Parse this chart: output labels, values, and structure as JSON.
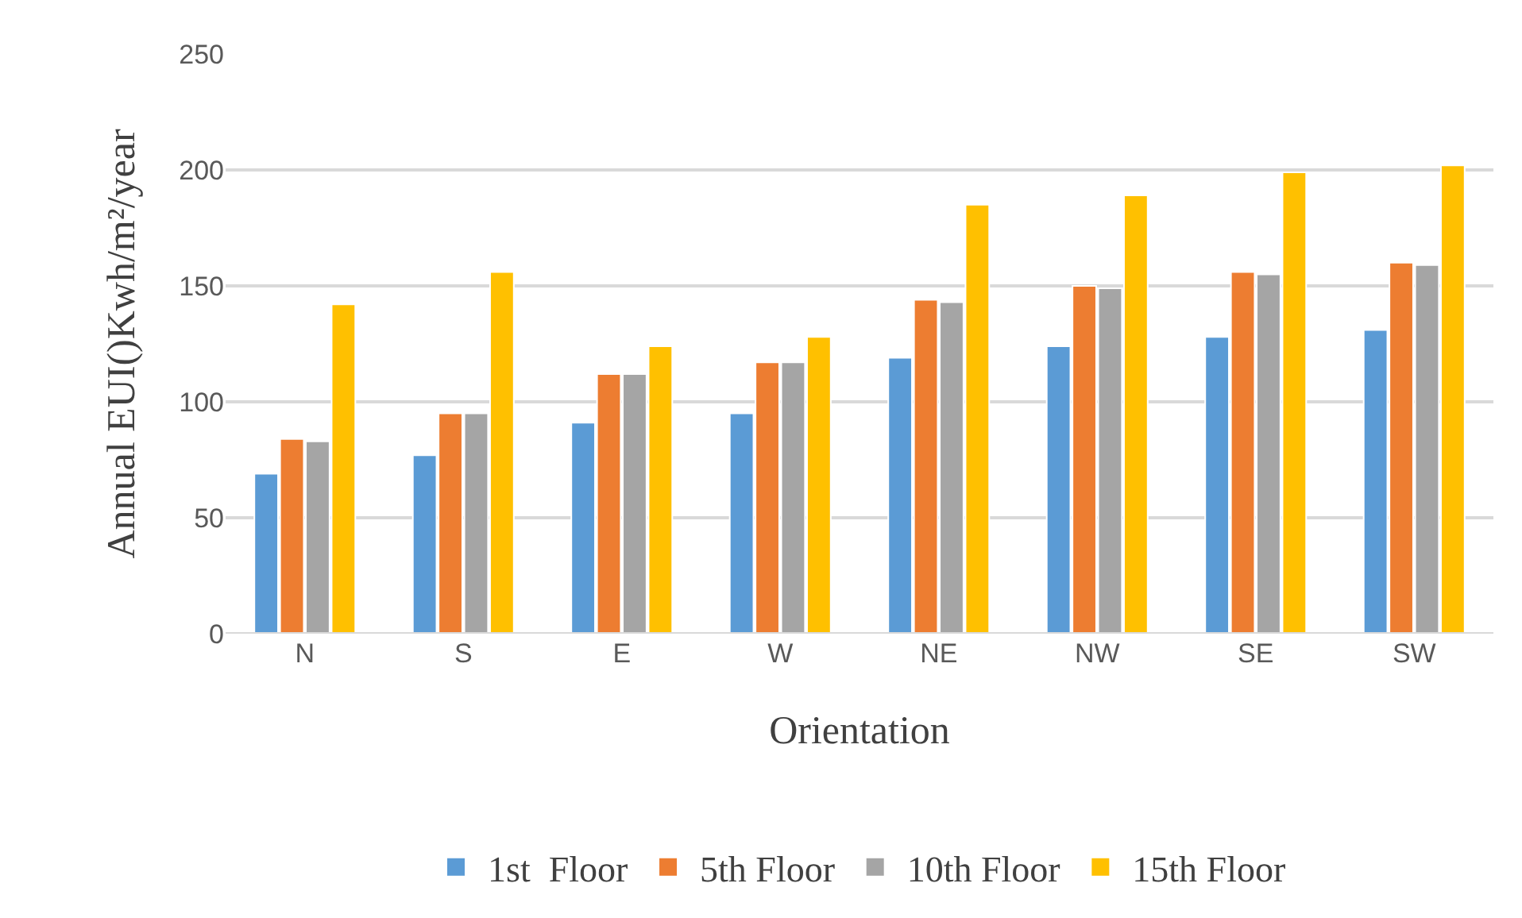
{
  "chart_data": {
    "type": "bar",
    "xlabel": "Orientation",
    "ylabel": "Annual EUI()Kwh/m²/year",
    "categories": [
      "N",
      "S",
      "E",
      "W",
      "NE",
      "NW",
      "SE",
      "SW"
    ],
    "series": [
      {
        "name": "1st  Floor",
        "color": "#5b9bd5",
        "values": [
          69,
          77,
          91,
          95,
          119,
          124,
          128,
          131
        ]
      },
      {
        "name": "5th Floor",
        "color": "#ed7d31",
        "values": [
          84,
          95,
          112,
          117,
          144,
          150,
          156,
          160
        ]
      },
      {
        "name": "10th Floor",
        "color": "#a5a5a5",
        "values": [
          83,
          95,
          112,
          117,
          143,
          149,
          155,
          159
        ]
      },
      {
        "name": "15th Floor",
        "color": "#ffc000",
        "values": [
          142,
          156,
          124,
          128,
          185,
          189,
          199,
          202
        ]
      }
    ],
    "ylim": [
      0,
      250
    ],
    "yticks": [
      0,
      50,
      100,
      150,
      200,
      250
    ],
    "grid": "y",
    "legend": "bottom"
  }
}
